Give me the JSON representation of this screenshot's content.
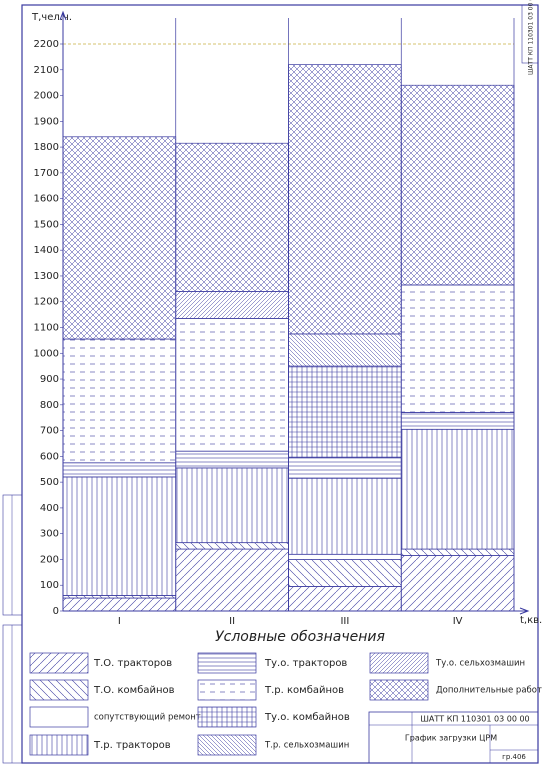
{
  "chart_data": {
    "type": "bar",
    "stacked": true,
    "y_label": "T,чел.ч.",
    "x_label": "t,кв.",
    "legend_title": "Условные обозначения",
    "categories": [
      "I",
      "II",
      "III",
      "IV"
    ],
    "ylim": [
      0,
      2200
    ],
    "yticks": [
      0,
      100,
      200,
      300,
      400,
      500,
      600,
      700,
      800,
      900,
      1000,
      1100,
      1200,
      1300,
      1400,
      1500,
      1600,
      1700,
      1800,
      1900,
      2000,
      2100,
      2200
    ],
    "color": "#3a3aa0",
    "series": [
      {
        "name": "Т.О. тракторов",
        "hatch": "diag-up",
        "values": [
          50,
          240,
          95,
          215
        ]
      },
      {
        "name": "Т.О. комбайнов",
        "hatch": "diag-down",
        "values": [
          10,
          25,
          105,
          25
        ]
      },
      {
        "name": "сопутствующий ремонт",
        "hatch": "none",
        "values": [
          0,
          0,
          20,
          0
        ]
      },
      {
        "name": "Т.р. тракторов",
        "hatch": "vertical",
        "values": [
          460,
          290,
          295,
          465
        ]
      },
      {
        "name": "Ту.о. тракторов",
        "hatch": "horizontal",
        "values": [
          55,
          65,
          80,
          65
        ]
      },
      {
        "name": "Т.р. комбайнов",
        "hatch": "dashed",
        "values": [
          480,
          515,
          0,
          495
        ]
      },
      {
        "name": "Ту.о. комбайнов",
        "hatch": "grid",
        "values": [
          0,
          0,
          355,
          0
        ]
      },
      {
        "name": "Т.р. сельхозмашин",
        "hatch": "diag-down-dense",
        "values": [
          0,
          0,
          125,
          0
        ]
      },
      {
        "name": "Ту.о. сельхозмашин",
        "hatch": "diag-up-dense",
        "values": [
          0,
          105,
          0,
          0
        ]
      },
      {
        "name": "Дополнительные работы",
        "hatch": "cross",
        "values": [
          785,
          575,
          1045,
          775
        ]
      }
    ]
  },
  "title_block": {
    "code": "ШАТТ КП 110301 03 00 00",
    "title": "График загрузки ЦРМ",
    "group": "гр.406"
  }
}
